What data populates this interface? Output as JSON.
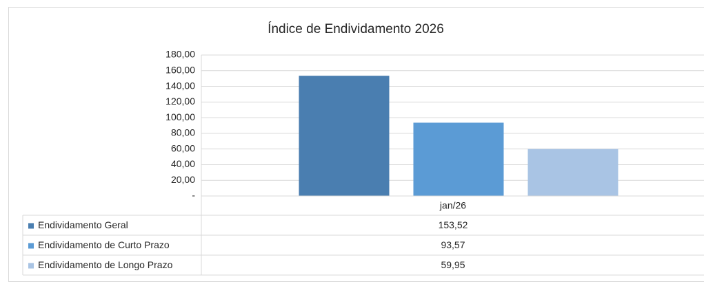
{
  "chart_data": {
    "type": "bar",
    "title": "Índice de Endividamento 2026",
    "categories": [
      "jan/26"
    ],
    "series": [
      {
        "name": "Endividamento Geral",
        "color": "#4a7eb0",
        "values": [
          153.52
        ],
        "value_labels": [
          "153,52"
        ]
      },
      {
        "name": "Endividamento de Curto Prazo",
        "color": "#5b9bd5",
        "values": [
          93.57
        ],
        "value_labels": [
          "93,57"
        ]
      },
      {
        "name": "Endividamento de Longo Prazo",
        "color": "#a9c4e4",
        "values": [
          59.95
        ],
        "value_labels": [
          "59,95"
        ]
      }
    ],
    "ylim": [
      0,
      180
    ],
    "yticks": [
      {
        "value": 0,
        "label": "-"
      },
      {
        "value": 20,
        "label": "20,00"
      },
      {
        "value": 40,
        "label": "40,00"
      },
      {
        "value": 60,
        "label": "60,00"
      },
      {
        "value": 80,
        "label": "80,00"
      },
      {
        "value": 100,
        "label": "100,00"
      },
      {
        "value": 120,
        "label": "120,00"
      },
      {
        "value": 140,
        "label": "140,00"
      },
      {
        "value": 160,
        "label": "160,00"
      },
      {
        "value": 180,
        "label": "180,00"
      }
    ],
    "grid": true
  }
}
